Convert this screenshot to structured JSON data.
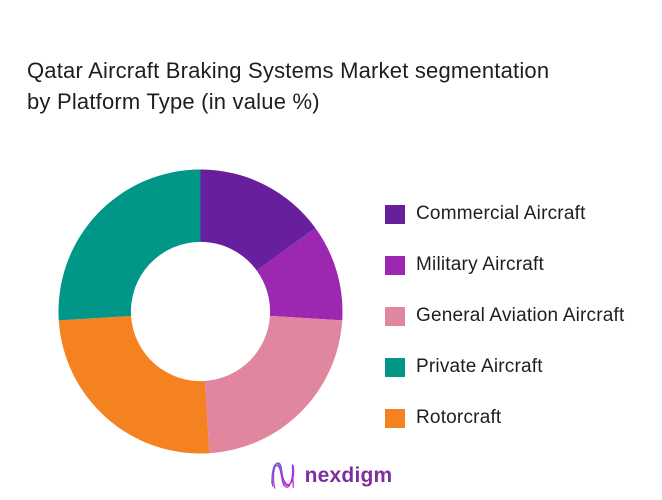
{
  "page": {
    "background": "#ffffff",
    "text_color": "#1e1e1e"
  },
  "header": {
    "title_line1": "Qatar Aircraft Braking Systems Market segmentation",
    "title_line2": "by Platform Type (in value %)"
  },
  "chart_data": {
    "type": "pie",
    "subtype": "donut",
    "title": "Qatar Aircraft Braking Systems Market segmentation by Platform Type (in value %)",
    "unit": "value %",
    "start_angle_deg": 0,
    "direction": "clockwise",
    "inner_radius_ratio": 0.49,
    "slices": [
      {
        "label": "Commercial Aircraft",
        "value": 15,
        "color": "#671F9E"
      },
      {
        "label": "Military Aircraft",
        "value": 11,
        "color": "#9C27B0"
      },
      {
        "label": "General Aviation Aircraft",
        "value": 23,
        "color": "#E0879F"
      },
      {
        "label": "Rotorcraft",
        "value": 25,
        "color": "#F58220"
      },
      {
        "label": "Private Aircraft",
        "value": 26,
        "color": "#009688"
      }
    ],
    "legend": {
      "position": "right",
      "order": [
        0,
        1,
        2,
        4,
        3
      ]
    }
  },
  "footer": {
    "logo_text": "nexdigm",
    "logo_text_color": "#7E2F9F",
    "logo_gradient_top": "#6D5BD0",
    "logo_gradient_bottom": "#C026D3"
  }
}
